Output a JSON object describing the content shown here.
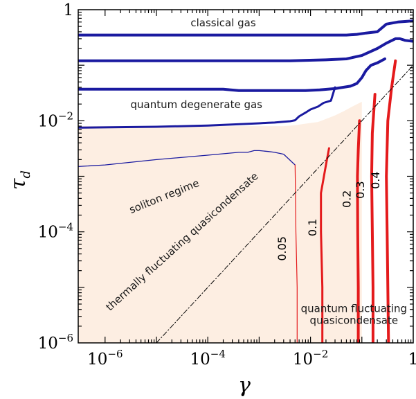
{
  "chart_data": {
    "type": "line",
    "title": "",
    "xlabel": "γ",
    "ylabel": "τ_d",
    "ylabel_main": "τ",
    "ylabel_sub": "d",
    "x_scale": "log",
    "y_scale": "log",
    "xlim": [
      3e-07,
      1
    ],
    "ylim": [
      1e-06,
      1
    ],
    "grid": false,
    "colors": {
      "frame": "#000000",
      "blue_contour": "#1a1aa0",
      "red_contour": "#e41a1c",
      "shaded_region": "#fdeee2",
      "diagonal": "#000000"
    },
    "x_ticks": [
      {
        "value": 1e-06,
        "base": "10",
        "exp": "−6"
      },
      {
        "value": 0.0001,
        "base": "10",
        "exp": "−4"
      },
      {
        "value": 0.01,
        "base": "10",
        "exp": "−2"
      },
      {
        "value": 1,
        "base": "1",
        "exp": ""
      }
    ],
    "y_ticks": [
      {
        "value": 1e-06,
        "base": "10",
        "exp": "−6"
      },
      {
        "value": 0.0001,
        "base": "10",
        "exp": "−4"
      },
      {
        "value": 0.01,
        "base": "10",
        "exp": "−2"
      },
      {
        "value": 1,
        "base": "1",
        "exp": ""
      }
    ],
    "shaded_region": {
      "name": "quasicondensate region",
      "x": [
        3e-07,
        3e-07,
        0.003,
        0.005,
        0.009,
        0.014,
        0.02,
        0.03,
        0.045,
        0.065,
        0.1,
        0.1,
        3e-07
      ],
      "y": [
        1e-06,
        0.008,
        0.008,
        0.0083,
        0.009,
        0.0095,
        0.0108,
        0.0125,
        0.015,
        0.018,
        0.022,
        1e-06,
        1e-06
      ]
    },
    "series": [
      {
        "color": "blue",
        "width": 4,
        "x": [
          3e-07,
          0.05,
          0.08,
          0.12,
          0.2,
          0.3,
          0.5,
          1
        ],
        "y": [
          0.35,
          0.35,
          0.36,
          0.38,
          0.4,
          0.55,
          0.6,
          0.63
        ]
      },
      {
        "color": "blue",
        "width": 4,
        "x": [
          3e-07,
          0.004,
          0.02,
          0.05,
          0.1,
          0.2,
          0.3,
          0.45,
          0.55,
          0.7,
          1
        ],
        "y": [
          0.12,
          0.12,
          0.125,
          0.13,
          0.15,
          0.2,
          0.25,
          0.3,
          0.3,
          0.28,
          0.27
        ]
      },
      {
        "color": "blue",
        "width": 4,
        "x": [
          3e-07,
          0.0002,
          0.0004,
          0.003,
          0.008,
          0.015,
          0.03,
          0.06,
          0.08,
          0.1,
          0.12,
          0.15,
          0.2,
          0.28
        ],
        "y": [
          0.037,
          0.037,
          0.035,
          0.035,
          0.035,
          0.036,
          0.038,
          0.042,
          0.047,
          0.06,
          0.08,
          0.1,
          0.11,
          0.13
        ]
      },
      {
        "color": "blue",
        "width": 3,
        "x": [
          3e-07,
          1e-05,
          0.0001,
          0.0006,
          0.001,
          0.0015,
          0.002,
          0.003,
          0.004,
          0.005,
          0.006,
          0.008,
          0.01,
          0.014,
          0.018,
          0.025,
          0.03
        ],
        "y": [
          0.0075,
          0.0078,
          0.0082,
          0.0088,
          0.009,
          0.0092,
          0.0093,
          0.0096,
          0.0098,
          0.0102,
          0.012,
          0.014,
          0.016,
          0.018,
          0.021,
          0.023,
          0.04
        ]
      },
      {
        "color": "blue",
        "width": 1.3,
        "x": [
          3e-07,
          1e-06,
          1e-05,
          0.0001,
          0.0004,
          0.0006,
          0.0008,
          0.001,
          0.0015,
          0.002,
          0.003,
          0.005
        ],
        "y": [
          0.0015,
          0.0016,
          0.002,
          0.0024,
          0.0027,
          0.0027,
          0.0029,
          0.0029,
          0.0028,
          0.0027,
          0.0025,
          0.0016
        ]
      },
      {
        "color": "red",
        "width": 1.2,
        "label": "0.05",
        "x": [
          0.005,
          0.0051,
          0.0052,
          0.0055,
          0.0055
        ],
        "y": [
          0.0016,
          0.0005,
          0.0001,
          1e-05,
          1e-06
        ]
      },
      {
        "color": "red",
        "width": 3,
        "label": "0.1",
        "x": [
          0.023,
          0.02,
          0.016,
          0.016,
          0.017,
          0.017
        ],
        "y": [
          0.0032,
          0.0016,
          0.0005,
          0.0001,
          1e-05,
          1e-06
        ]
      },
      {
        "color": "red",
        "width": 4,
        "label": "0.2",
        "x": [
          0.09,
          0.085,
          0.082,
          0.083,
          0.085,
          0.085
        ],
        "y": [
          0.01,
          0.003,
          0.001,
          0.0001,
          1e-05,
          1e-06
        ]
      },
      {
        "color": "red",
        "width": 4,
        "label": "0.3",
        "x": [
          0.18,
          0.16,
          0.155,
          0.16,
          0.165,
          0.165
        ],
        "y": [
          0.03,
          0.006,
          0.001,
          0.0001,
          1e-05,
          1e-06
        ]
      },
      {
        "color": "red",
        "width": 4,
        "label": "0.4",
        "x": [
          0.45,
          0.38,
          0.32,
          0.3,
          0.31,
          0.32,
          0.33
        ],
        "y": [
          0.12,
          0.04,
          0.01,
          0.001,
          0.0001,
          1e-05,
          1e-06
        ]
      },
      {
        "color": "diagonal",
        "width": 1,
        "dash": "7 3 1.5 3",
        "x": [
          1e-05,
          1
        ],
        "y": [
          1e-06,
          0.1
        ]
      }
    ],
    "annotations": [
      {
        "text": "classical gas",
        "x": 0.0002,
        "y": 0.5,
        "rotate": 0
      },
      {
        "text": "quantum degenerate gas",
        "x": 6e-05,
        "y": 0.017,
        "rotate": 0
      },
      {
        "text": "soliton regime",
        "x": 1.5e-05,
        "y": 0.00038,
        "rotate": -22
      },
      {
        "text": "thermally fluctuating quasicondensate",
        "x": 3.5e-05,
        "y": 6e-05,
        "rotate": -42
      },
      {
        "text": "quantum fluctuating",
        "x": 0.07,
        "y": 3.6e-06,
        "rotate": 0
      },
      {
        "text": "quasicondensate",
        "x": 0.07,
        "y": 2.2e-06,
        "rotate": 0
      }
    ],
    "contour_labels": [
      {
        "text": "0.05",
        "x": 0.0033,
        "y": 5e-05,
        "rotate": -90
      },
      {
        "text": "0.1",
        "x": 0.013,
        "y": 0.00012,
        "rotate": -90
      },
      {
        "text": "0.2",
        "x": 0.06,
        "y": 0.00039,
        "rotate": -90
      },
      {
        "text": "0.3",
        "x": 0.11,
        "y": 0.00057,
        "rotate": -90
      },
      {
        "text": "0.4",
        "x": 0.22,
        "y": 0.00085,
        "rotate": -90
      }
    ]
  }
}
